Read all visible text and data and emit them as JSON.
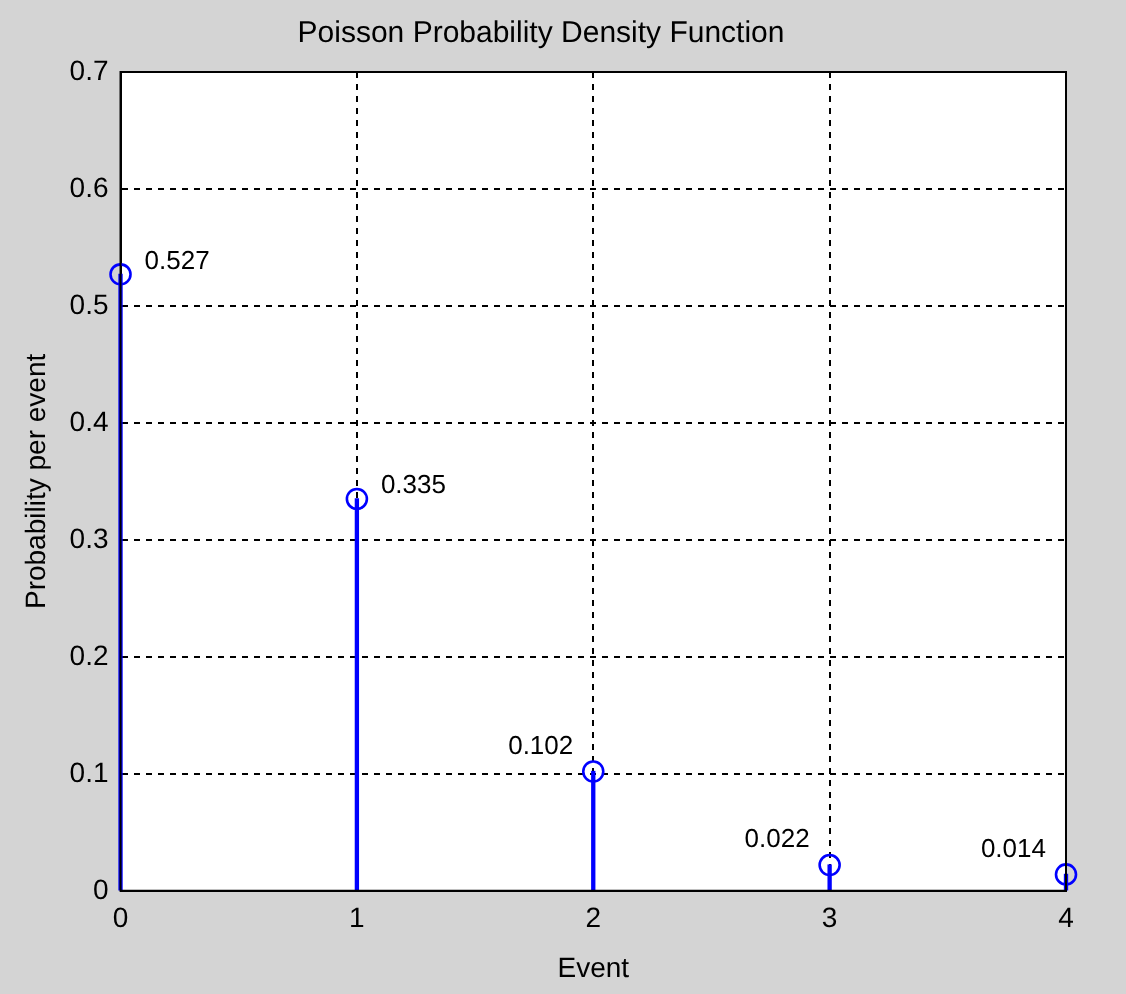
{
  "chart_data": {
    "type": "lollipop",
    "title": "Poisson Probability Density Function",
    "xlabel": "Event",
    "ylabel": "Probability per event",
    "x": [
      0,
      1,
      2,
      3,
      4
    ],
    "series": [
      {
        "color": "#0000ff",
        "values": [
          0.527,
          0.335,
          0.102,
          0.022,
          0.014
        ]
      }
    ],
    "xlim": [
      0,
      4
    ],
    "xticks": [
      0,
      1,
      2,
      3,
      4
    ],
    "ylim": [
      0,
      0.7
    ],
    "yticks": [
      0,
      0.1,
      0.2,
      0.3,
      0.4,
      0.5,
      0.6,
      0.7
    ],
    "grid": true,
    "line_style": "dashed",
    "marker": "circle",
    "data_labels": true,
    "legend": false
  }
}
